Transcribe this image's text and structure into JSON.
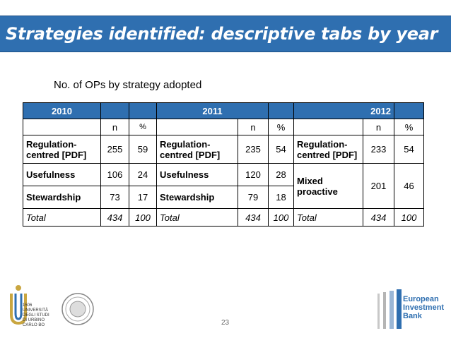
{
  "slide": {
    "title": "Strategies identified: descriptive tabs by year",
    "subtitle": "No. of OPs by strategy adopted",
    "page_number": "23"
  },
  "table": {
    "years": [
      "2010",
      "2011",
      "2012"
    ],
    "col_n": "n",
    "col_pct": "%",
    "y2010": {
      "rows": [
        {
          "label": "Regulation-centred [PDF]",
          "n": "255",
          "pct": "59"
        },
        {
          "label": "Usefulness",
          "n": "106",
          "pct": "24"
        },
        {
          "label": "Stewardship",
          "n": "73",
          "pct": "17"
        }
      ],
      "total": {
        "label": "Total",
        "n": "434",
        "pct": "100"
      }
    },
    "y2011": {
      "rows": [
        {
          "label": "Regulation-centred [PDF]",
          "n": "235",
          "pct": "54"
        },
        {
          "label": "Usefulness",
          "n": "120",
          "pct": "28"
        },
        {
          "label": "Stewardship",
          "n": "79",
          "pct": "18"
        }
      ],
      "total": {
        "label": "Total",
        "n": "434",
        "pct": "100"
      }
    },
    "y2012": {
      "rows": [
        {
          "label": "Regulation-centred [PDF]",
          "n": "233",
          "pct": "54"
        },
        {
          "label": "Mixed proactive",
          "n": "201",
          "pct": "46"
        }
      ],
      "total": {
        "label": "Total",
        "n": "434",
        "pct": "100"
      }
    }
  },
  "logos": {
    "left_text": "1506 UNIVERSITÀ DEGLI STUDI DI URBINO CARLO BO",
    "right_text": "European Investment Bank"
  },
  "colors": {
    "accent": "#2f6fb0"
  }
}
